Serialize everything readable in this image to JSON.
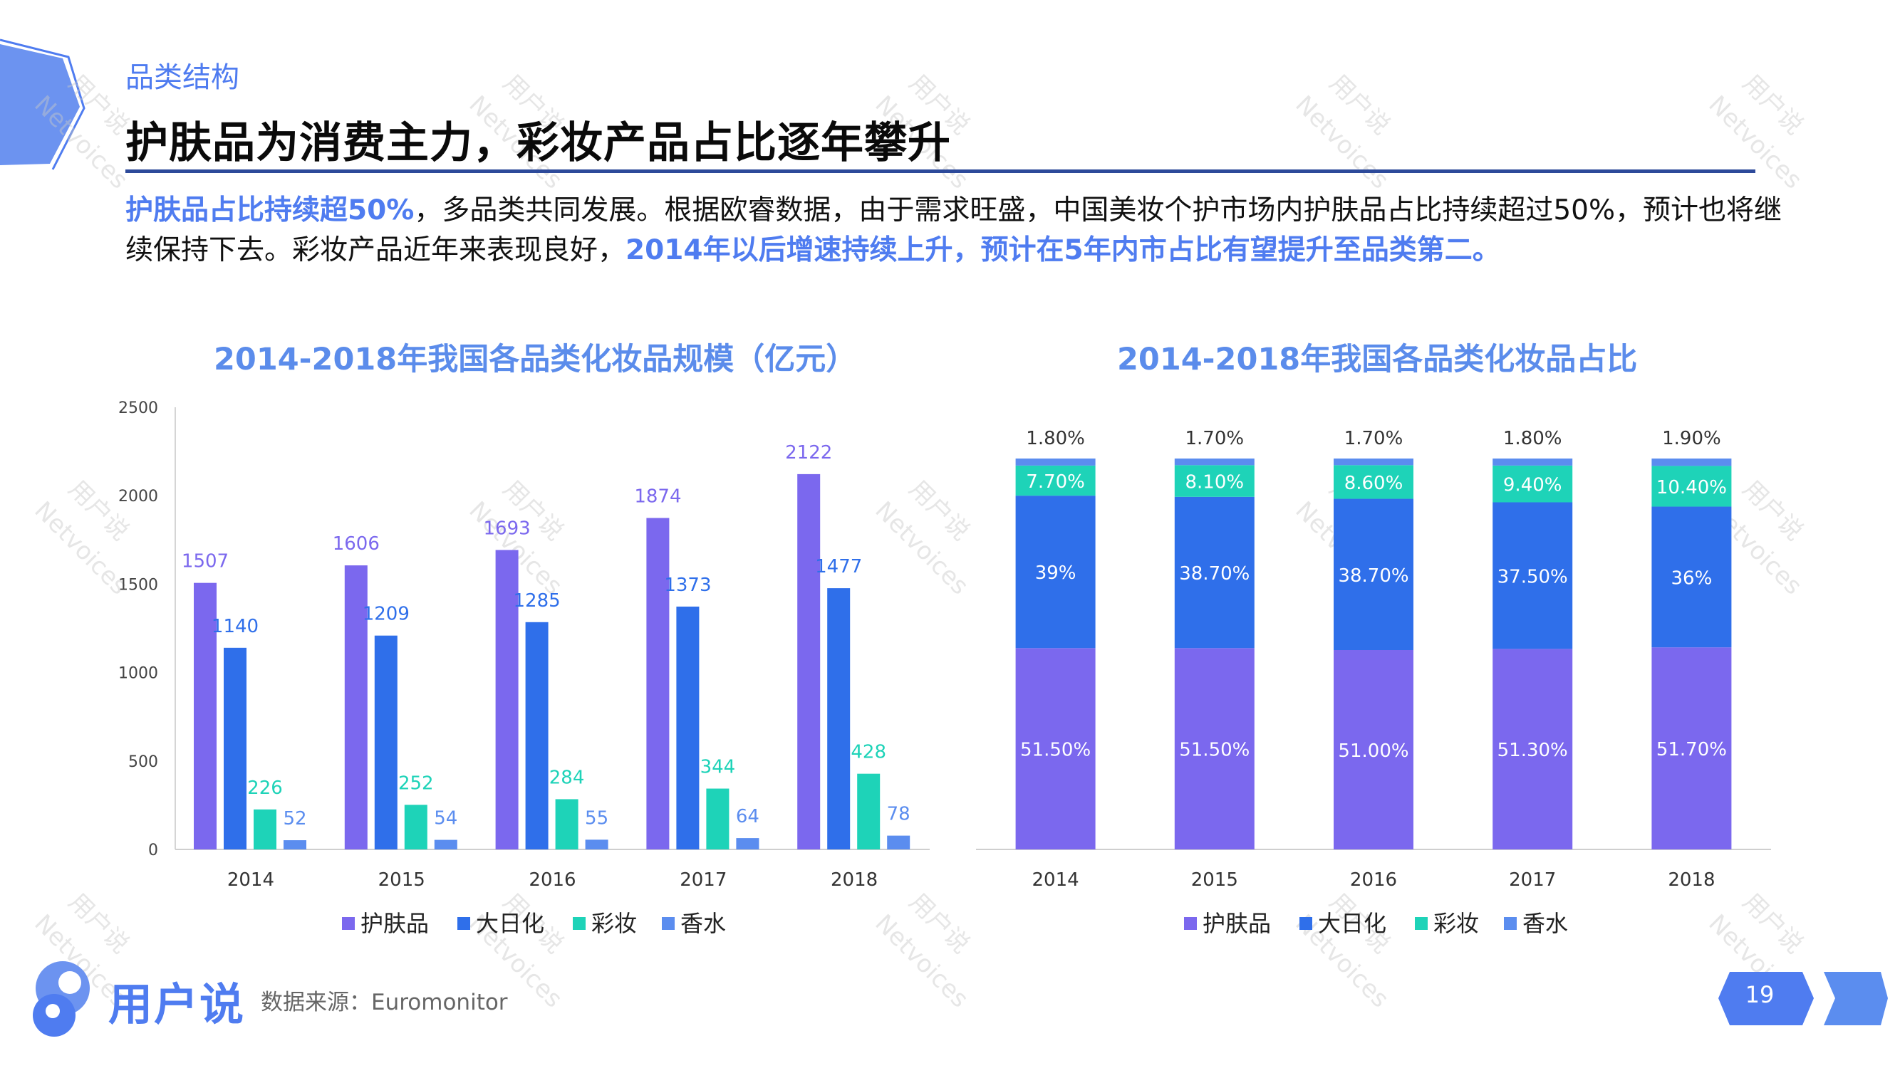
{
  "header": {
    "section": "品类结构",
    "title": "护肤品为消费主力，彩妆产品占比逐年攀升"
  },
  "intro": {
    "hl1": "护肤品占比持续超50%",
    "text1": "，多品类共同发展。根据欧睿数据，由于需求旺盛，中国美妆个护市场内护肤品占比持续超过50%，预计也将继续保持下去。彩妆产品近年来表现良好，",
    "hl2": "2014年以后增速持续上升，预计在5年内市占比有望提升至品类第二。"
  },
  "chart1_title": "2014-2018年我国各品类化妆品规模（亿元）",
  "chart2_title": "2014-2018年我国各品类化妆品占比",
  "footer": {
    "brand": "用户说",
    "source": "数据来源：Euromonitor",
    "page": "19"
  },
  "watermark": {
    "cn": "用户说",
    "en": "Netvoices"
  },
  "colors": {
    "skincare": "#7B68EE",
    "daily": "#2F6FEA",
    "makeup": "#1ED3B8",
    "perfume": "#5B8DEF",
    "accent": "#4F7CF0"
  },
  "chart_data": [
    {
      "type": "bar",
      "title": "2014-2018年我国各品类化妆品规模（亿元）",
      "categories": [
        "2014",
        "2015",
        "2016",
        "2017",
        "2018"
      ],
      "series": [
        {
          "name": "护肤品",
          "values": [
            1507,
            1606,
            1693,
            1874,
            2122
          ]
        },
        {
          "name": "大日化",
          "values": [
            1140,
            1209,
            1285,
            1373,
            1477
          ]
        },
        {
          "name": "彩妆",
          "values": [
            226,
            252,
            284,
            344,
            428
          ]
        },
        {
          "name": "香水",
          "values": [
            52,
            54,
            55,
            64,
            78
          ]
        }
      ],
      "ylim": [
        0,
        2500
      ],
      "yticks": [
        "0",
        "500",
        "1000",
        "1500",
        "2000",
        "2500"
      ],
      "legend": "bottom"
    },
    {
      "type": "bar",
      "stacked": true,
      "title": "2014-2018年我国各品类化妆品占比",
      "categories": [
        "2014",
        "2015",
        "2016",
        "2017",
        "2018"
      ],
      "series": [
        {
          "name": "护肤品",
          "values": [
            51.5,
            51.5,
            51.0,
            51.3,
            51.7
          ],
          "labels": [
            "51.50%",
            "51.50%",
            "51.00%",
            "51.30%",
            "51.70%"
          ]
        },
        {
          "name": "大日化",
          "values": [
            39,
            38.7,
            38.7,
            37.5,
            36
          ],
          "labels": [
            "39%",
            "38.70%",
            "38.70%",
            "37.50%",
            "36%"
          ]
        },
        {
          "name": "彩妆",
          "values": [
            7.7,
            8.1,
            8.6,
            9.4,
            10.4
          ],
          "labels": [
            "7.70%",
            "8.10%",
            "8.60%",
            "9.40%",
            "10.40%"
          ]
        },
        {
          "name": "香水",
          "values": [
            1.8,
            1.7,
            1.7,
            1.8,
            1.9
          ],
          "labels": [
            "1.80%",
            "1.70%",
            "1.70%",
            "1.80%",
            "1.90%"
          ]
        }
      ],
      "legend": "bottom"
    }
  ]
}
